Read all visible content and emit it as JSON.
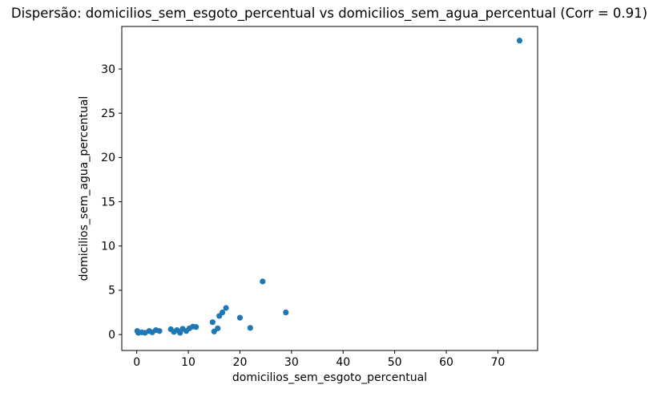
{
  "figure": {
    "background_color": "#ffffff",
    "frame_color": "#000000",
    "text_color": "#000000"
  },
  "chart_data": {
    "type": "scatter",
    "title": "Dispersão: domicilios_sem_esgoto_percentual vs domicilios_sem_agua_percentual (Corr = 0.91)",
    "xlabel": "domicilios_sem_esgoto_percentual",
    "ylabel": "domicilios_sem_agua_percentual",
    "correlation": 0.91,
    "marker_color": "#1f77b4",
    "marker_radius_px": 3.6,
    "grid": false,
    "legend": null,
    "xlim": [
      -2.9,
      77.7
    ],
    "ylim": [
      -1.8,
      34.8
    ],
    "xticks": [
      0,
      10,
      20,
      30,
      40,
      50,
      60,
      70
    ],
    "yticks": [
      0,
      5,
      10,
      15,
      20,
      25,
      30
    ],
    "points": [
      [
        0.1,
        0.4
      ],
      [
        0.3,
        0.2
      ],
      [
        1.0,
        0.25
      ],
      [
        1.6,
        0.2
      ],
      [
        2.4,
        0.4
      ],
      [
        3.0,
        0.25
      ],
      [
        3.7,
        0.5
      ],
      [
        4.4,
        0.4
      ],
      [
        6.6,
        0.6
      ],
      [
        7.2,
        0.3
      ],
      [
        7.8,
        0.5
      ],
      [
        8.4,
        0.2
      ],
      [
        8.9,
        0.65
      ],
      [
        9.6,
        0.4
      ],
      [
        10.2,
        0.7
      ],
      [
        10.9,
        0.9
      ],
      [
        11.5,
        0.85
      ],
      [
        14.7,
        1.4
      ],
      [
        15.0,
        0.35
      ],
      [
        15.7,
        0.7
      ],
      [
        16.0,
        2.1
      ],
      [
        16.6,
        2.5
      ],
      [
        17.3,
        3.0
      ],
      [
        20.0,
        1.9
      ],
      [
        22.0,
        0.75
      ],
      [
        24.4,
        6.0
      ],
      [
        28.9,
        2.5
      ],
      [
        74.2,
        33.2
      ]
    ]
  }
}
